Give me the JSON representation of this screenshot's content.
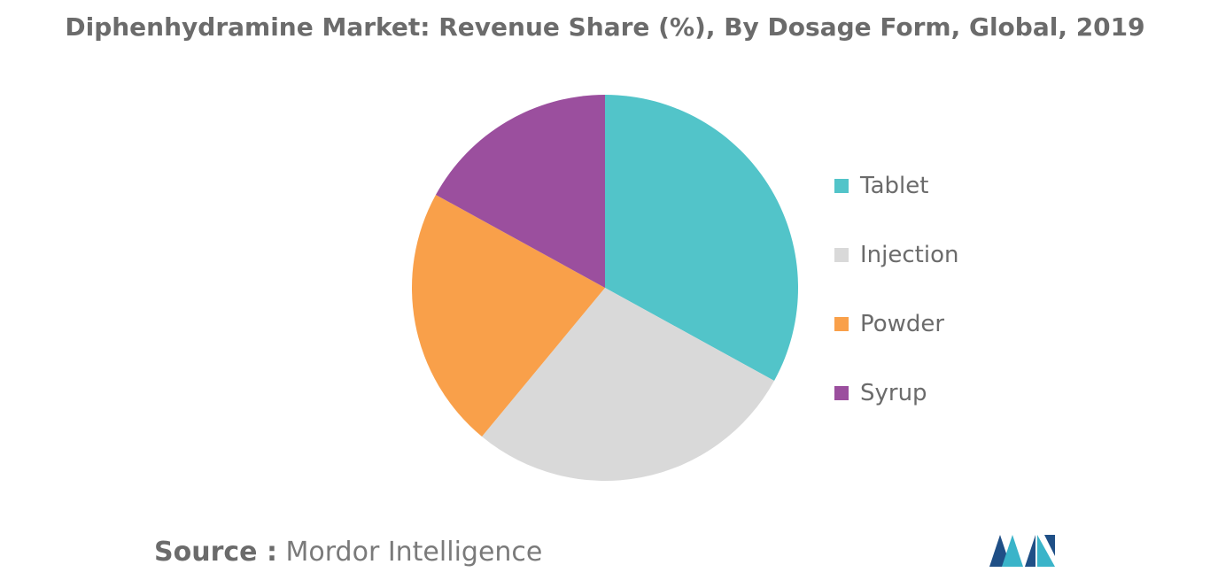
{
  "chart_data": {
    "type": "pie",
    "title": "Diphenhydramine Market: Revenue Share (%), By Dosage Form, Global, 2019",
    "categories": [
      "Tablet",
      "Injection",
      "Powder",
      "Syrup"
    ],
    "values": [
      33,
      28,
      22,
      17
    ],
    "colors": [
      "#52c4c9",
      "#d9d9d9",
      "#f9a04a",
      "#9b4f9e"
    ],
    "legend_position": "right"
  },
  "source": {
    "label": "Source :",
    "text": "Mordor Intelligence"
  },
  "logo": {
    "name": "mordor-intelligence-logo",
    "colors": [
      "#1f4f86",
      "#3ab4c9"
    ]
  }
}
